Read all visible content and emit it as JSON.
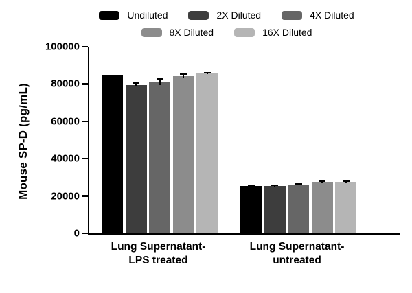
{
  "chart_data": {
    "type": "bar",
    "title": "",
    "xlabel": "",
    "ylabel": "Mouse SP-D (pg/mL)",
    "ylim": [
      0,
      100000
    ],
    "grid": false,
    "legend_position": "top",
    "yticks": [
      {
        "value": 0,
        "label": "0"
      },
      {
        "value": 20000,
        "label": "20000"
      },
      {
        "value": 40000,
        "label": "40000"
      },
      {
        "value": 60000,
        "label": "60000"
      },
      {
        "value": 80000,
        "label": "80000"
      },
      {
        "value": 100000,
        "label": "100000"
      }
    ],
    "categories": [
      {
        "line1": "Lung Supernatant-",
        "line2": "LPS treated"
      },
      {
        "line1": "Lung Supernatant-",
        "line2": "untreated"
      }
    ],
    "series": [
      {
        "name": "Undiluted",
        "color": "#000000",
        "values": [
          84500,
          25200
        ],
        "errors": [
          0,
          350
        ]
      },
      {
        "name": "2X Diluted",
        "color": "#3d3d3d",
        "values": [
          79500,
          25400
        ],
        "errors": [
          900,
          350
        ]
      },
      {
        "name": "4X Diluted",
        "color": "#666666",
        "values": [
          81000,
          26100
        ],
        "errors": [
          1700,
          450
        ]
      },
      {
        "name": "8X Diluted",
        "color": "#8c8c8c",
        "values": [
          84200,
          27400
        ],
        "errors": [
          1200,
          550
        ]
      },
      {
        "name": "16X Diluted",
        "color": "#b5b5b5",
        "values": [
          85600,
          27600
        ],
        "errors": [
          450,
          400
        ]
      }
    ],
    "legend_rows": [
      [
        0,
        1,
        2
      ],
      [
        3,
        4
      ]
    ]
  }
}
